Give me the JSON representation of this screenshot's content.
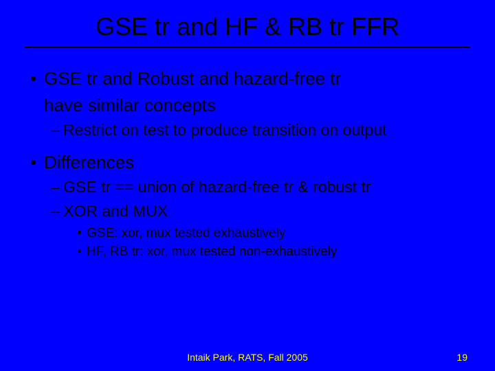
{
  "title": "GSE tr and HF & RB tr FFR",
  "bullets": {
    "b1_line1": "GSE tr and Robust and hazard-free tr",
    "b1_line2": "have similar concepts",
    "b1_sub1": "Restrict on test to produce transition on output",
    "b2": "Differences",
    "b2_sub1": "GSE tr == union of hazard-free tr & robust tr",
    "b2_sub2": "XOR and MUX",
    "b2_sub2_a": "GSE: xor, mux tested exhaustively",
    "b2_sub2_b": "HF, RB tr: xor, mux tested non-exhaustively"
  },
  "footer": {
    "center": "Intaik Park, RATS, Fall 2005",
    "page": "19"
  },
  "colors": {
    "background": "#0000ff",
    "text": "#000000",
    "footer_text": "#ffff00"
  }
}
